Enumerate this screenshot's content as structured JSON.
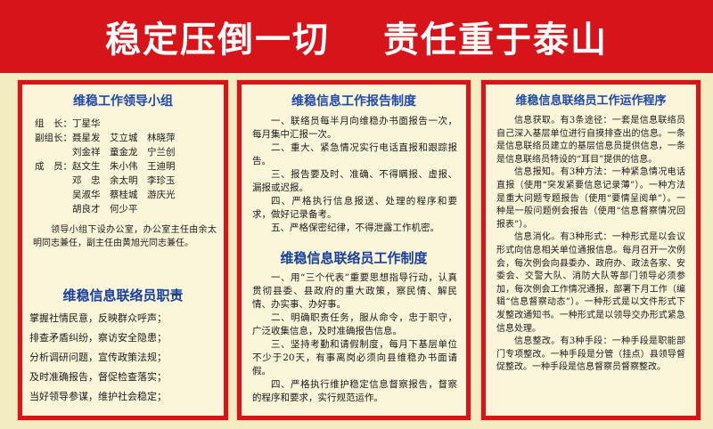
{
  "banner": {
    "left": "稳定压倒一切",
    "right": "责任重于泰山"
  },
  "left_panel": {
    "title": "维稳工作领导小组",
    "roster": [
      {
        "label": "组　长：",
        "names": "丁星华"
      },
      {
        "label": "副组长：",
        "names": "聂星发　艾立城　林晓萍"
      },
      {
        "label": "",
        "names": "刘金祥　童金龙　宁兰创"
      },
      {
        "label": "成　员：",
        "names": "赵文生　朱小伟　王迪明"
      },
      {
        "label": "",
        "names": "邓　忠　余太明　李珍玉"
      },
      {
        "label": "",
        "names": "吴淑华　蔡桂城　游庆光"
      },
      {
        "label": "",
        "names": "胡良才　何少平"
      }
    ],
    "note": "领导小组下设办公室，办公室主任由余太明同志兼任，副主任由黄旭光同志兼任。",
    "duties_title": "维稳信息联络员职责",
    "duties": [
      "掌握社情民意，反映群众呼声；",
      "排查矛盾纠纷，察访安全隐患；",
      "分析调研问题，宣传政策法规；",
      "及时准确报告，督促检查落实；",
      "当好领导参谋，维护社会稳定；"
    ]
  },
  "mid_panel": {
    "title1": "维稳信息工作报告制度",
    "items1": [
      "一、联络员每半月向维稳办书面报告一次，每月集中汇报一次。",
      "二、重大、紧急情况实行电话直报和跟踪报告。",
      "三、报告要及时、准确、不得瞒报、虚报、漏报或迟报。",
      "四、严格执行信息报送、处理的程序和要求，做好记录备考。",
      "五、严格保密纪律，不得泄露工作机密。"
    ],
    "title2": "维稳信息联络员工作制度",
    "items2": [
      "一、用“三个代表”重要思想指导行动，认真贯彻县委、县政府的重大政策，察民情、解民情、办实事、办好事。",
      "二、明确职责任务，服从命令，忠于职守，广泛收集信息，及时准确报告信息。",
      "三、坚持考勤和请假制度，每月下基层单位不少于20天，有事离岗必须向县维稳办书面请假。",
      "四、严格执行维护稳定信息督察报告，督察的程序和要求，实行规范运作。"
    ]
  },
  "right_panel": {
    "title": "维稳信息联络员工作运作程序",
    "paras": [
      "信息获取。有3条途径：一套是信息联络员自己深入基层单位进行自摸排查出的信息。一条是信息联络员建立的基层信息员提供信息，一条是信息联络员特设的“耳目”提供的信息。",
      "信息报知。有3种方法：一种紧急情况电话直报（使用“突发紧要信息记录薄”）。一种方法是重大问题专题报告（使用“要情呈阅单”）。一种是一般问题例会报告（使用“信息督察情况回报表”）。",
      "信息消化。有3种形式：一种形式是以会议形式向信息相关单位通报信息。每月召开一次例会，每次例会向县委办、政府办、政法各家、安委会、交警大队、消防大队等部门领导必须参加，每次例会工作情况通报，部署下月工作（编辑“信息督察动态”）。一种形式是以文件形式下发整改通知书。一种形式是以领导交办形式紧急信息处理。",
      "信息整改。有3种手段：一种手段是职能部门专项整改。一种手段是分管（挂点）县领导督促整改。一种手段是信息督察员督察整改。"
    ]
  }
}
